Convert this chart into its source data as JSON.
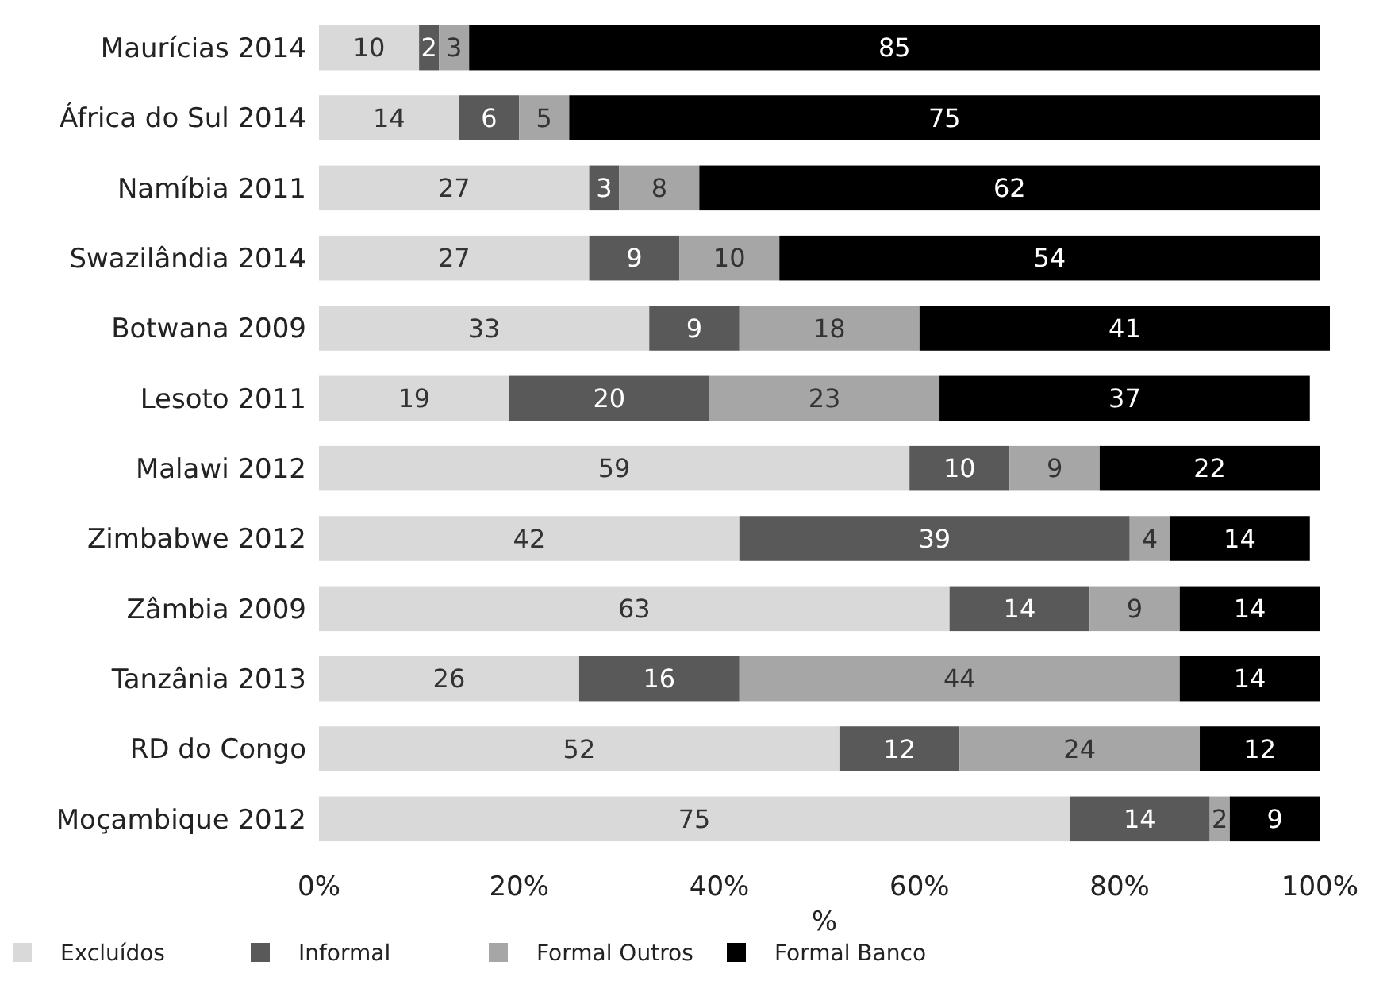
{
  "chart_data": {
    "type": "bar",
    "orientation": "horizontal",
    "stacked": true,
    "xlabel": "%",
    "legend": "bottom left",
    "data_labels": true,
    "categories": [
      "Maurícias 2014",
      "África do Sul 2014",
      "Namíbia 2011",
      "Swazilândia 2014",
      "Botwana 2009",
      "Lesoto 2011",
      "Malawi 2012",
      "Zimbabwe 2012",
      "Zâmbia 2009",
      "Tanzânia 2013",
      "RD do Congo",
      "Moçambique 2012"
    ],
    "xlim": [
      0,
      101
    ],
    "xticks": [
      {
        "value": 0,
        "label": "0%"
      },
      {
        "value": 20,
        "label": "20%"
      },
      {
        "value": 40,
        "label": "40%"
      },
      {
        "value": 60,
        "label": "60%"
      },
      {
        "value": 80,
        "label": "80%"
      },
      {
        "value": 100,
        "label": "100%"
      }
    ],
    "series": [
      {
        "name": "Excluídos",
        "color": "#d9d9d9",
        "values": [
          10,
          14,
          27,
          27,
          33,
          19,
          59,
          42,
          63,
          26,
          52,
          75
        ]
      },
      {
        "name": "Informal",
        "color": "#595959",
        "values": [
          2,
          6,
          3,
          9,
          9,
          20,
          10,
          39,
          14,
          16,
          12,
          14
        ]
      },
      {
        "name": "Formal Outros",
        "color": "#a6a6a6",
        "values": [
          3,
          5,
          8,
          10,
          18,
          23,
          9,
          4,
          9,
          44,
          24,
          2
        ]
      },
      {
        "name": "Formal Banco",
        "color": "#000000",
        "values": [
          85,
          75,
          62,
          54,
          41,
          37,
          22,
          14,
          14,
          14,
          12,
          9
        ]
      }
    ]
  }
}
